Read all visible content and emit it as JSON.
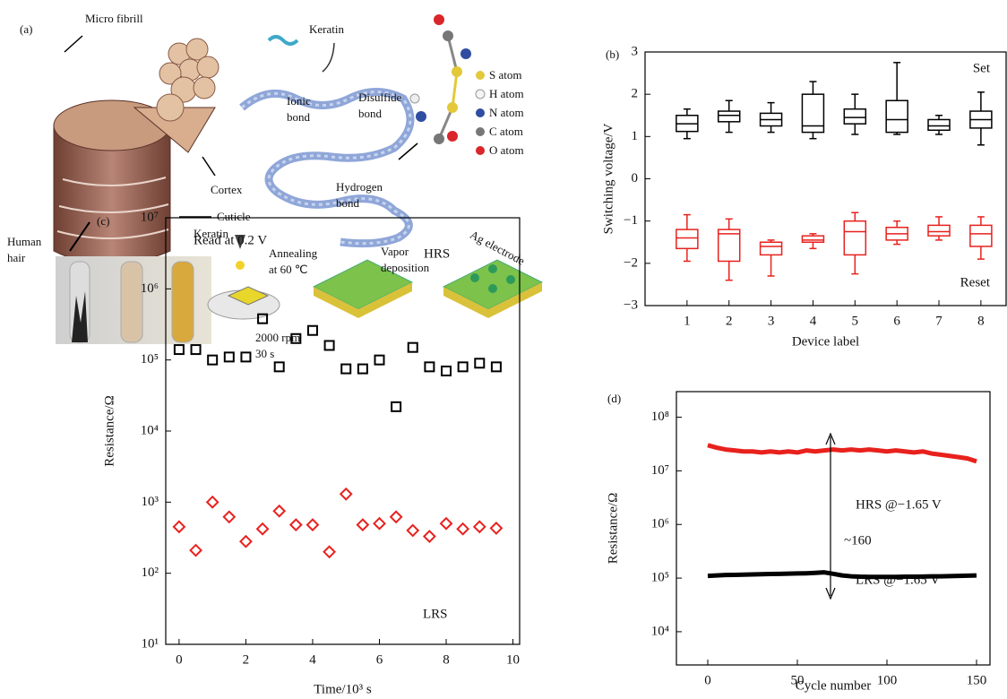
{
  "panel_a": {
    "panel_label": "(a)",
    "labels": [
      {
        "lines": [
          "Micro fibrill"
        ]
      },
      {
        "lines": [
          "Keratin"
        ]
      },
      {
        "lines": [
          "S atom"
        ]
      },
      {
        "lines": [
          "H atom"
        ]
      },
      {
        "lines": [
          "N atom"
        ]
      },
      {
        "lines": [
          "C atom"
        ]
      },
      {
        "lines": [
          "O atom"
        ]
      },
      {
        "lines": [
          "Ionic",
          "bond"
        ]
      },
      {
        "lines": [
          "Disulfide",
          "bond"
        ]
      },
      {
        "lines": [
          "Cortex"
        ]
      },
      {
        "lines": [
          "Cuticle"
        ]
      },
      {
        "lines": [
          "Human",
          "hair"
        ]
      },
      {
        "lines": [
          "Hydrogen",
          "bond"
        ]
      },
      {
        "lines": [
          "Keratin"
        ]
      },
      {
        "lines": [
          "Annealing",
          "at 60 ℃"
        ]
      },
      {
        "lines": [
          "Vapor",
          "deposition"
        ]
      },
      {
        "lines": [
          "Ag electrode"
        ]
      },
      {
        "lines": [
          "2000 rpm",
          "30 s"
        ]
      }
    ]
  },
  "chart_data": [
    {
      "type": "box",
      "panel_label": "(b)",
      "x_label": "Device label",
      "y_label": "Switching voltage/V",
      "categories": [
        "1",
        "2",
        "3",
        "4",
        "5",
        "6",
        "7",
        "8"
      ],
      "ylim": [
        -3,
        3
      ],
      "yticks": [
        {
          "value": -3,
          "label": "−3"
        },
        {
          "value": -2,
          "label": "−2"
        },
        {
          "value": -1,
          "label": "−1"
        },
        0,
        1,
        2,
        3
      ],
      "annotations": [
        "Set",
        "Reset"
      ],
      "series": [
        {
          "name": "Set",
          "color": "#000000",
          "min": [
            0.95,
            1.1,
            1.1,
            0.95,
            1.05,
            1.05,
            1.05,
            0.8
          ],
          "q1": [
            1.12,
            1.35,
            1.25,
            1.1,
            1.3,
            1.1,
            1.15,
            1.2
          ],
          "median": [
            1.3,
            1.5,
            1.4,
            1.25,
            1.45,
            1.4,
            1.25,
            1.4
          ],
          "q3": [
            1.5,
            1.6,
            1.55,
            2.0,
            1.65,
            1.85,
            1.4,
            1.6
          ],
          "max": [
            1.65,
            1.85,
            1.8,
            2.3,
            2.0,
            2.75,
            1.5,
            2.05
          ]
        },
        {
          "name": "Reset",
          "color": "#e8211d",
          "min": [
            -1.95,
            -2.4,
            -2.3,
            -1.65,
            -2.25,
            -1.55,
            -1.45,
            -1.9
          ],
          "q1": [
            -1.65,
            -1.95,
            -1.8,
            -1.5,
            -1.8,
            -1.45,
            -1.35,
            -1.6
          ],
          "median": [
            -1.4,
            -1.3,
            -1.6,
            -1.45,
            -1.25,
            -1.3,
            -1.25,
            -1.3
          ],
          "q3": [
            -1.2,
            -1.2,
            -1.5,
            -1.35,
            -1.0,
            -1.15,
            -1.1,
            -1.1
          ],
          "max": [
            -0.85,
            -0.95,
            -1.45,
            -1.3,
            -0.8,
            -1.0,
            -0.9,
            -0.9
          ]
        }
      ]
    },
    {
      "type": "scatter",
      "panel_label": "(c)",
      "x_label": "Time/10³ s",
      "y_label": "Resistance/Ω",
      "ylog": true,
      "xlim": [
        -0.4,
        10.2
      ],
      "ylim": [
        10,
        10000000
      ],
      "xticks": [
        0,
        2,
        4,
        6,
        8,
        10
      ],
      "yticks": [
        {
          "value": 10,
          "label": "10¹"
        },
        {
          "value": 100,
          "label": "10²"
        },
        {
          "value": 1000,
          "label": "10³"
        },
        {
          "value": 10000,
          "label": "10⁴"
        },
        {
          "value": 100000,
          "label": "10⁵"
        },
        {
          "value": 1000000,
          "label": "10⁶"
        },
        {
          "value": 10000000,
          "label": "10⁷"
        }
      ],
      "annotations": [
        "Read at 0.2 V",
        "HRS",
        "LRS"
      ],
      "x": [
        0,
        0.5,
        1,
        1.5,
        2,
        2.5,
        3,
        3.5,
        4,
        4.5,
        5,
        5.5,
        6,
        6.5,
        7,
        7.5,
        8,
        8.5,
        9,
        9.5
      ],
      "series": [
        {
          "name": "HRS",
          "color": "#000000",
          "marker": "square",
          "values": [
            140000,
            140000,
            100000,
            110000,
            110000,
            380000,
            80000,
            200000,
            260000,
            160000,
            75000,
            75000,
            100000,
            22000,
            150000,
            80000,
            70000,
            80000,
            90000,
            80000
          ]
        },
        {
          "name": "LRS",
          "color": "#e8211d",
          "marker": "diamond",
          "values": [
            450,
            210,
            1000,
            620,
            280,
            420,
            750,
            480,
            480,
            200,
            1300,
            480,
            500,
            620,
            400,
            330,
            500,
            420,
            450,
            430
          ]
        }
      ]
    },
    {
      "type": "line",
      "panel_label": "(d)",
      "x_label": "Cycle number",
      "y_label": "Resistance/Ω",
      "ylog": true,
      "xlim": [
        -17.5,
        157.5
      ],
      "ylim": [
        2400,
        300000000
      ],
      "xticks": [
        0,
        50,
        100,
        150
      ],
      "yticks": [
        {
          "value": 10000,
          "label": "10⁴"
        },
        {
          "value": 100000,
          "label": "10⁵"
        },
        {
          "value": 1000000,
          "label": "10⁶"
        },
        {
          "value": 10000000,
          "label": "10⁷"
        },
        {
          "value": 100000000,
          "label": "10⁸"
        }
      ],
      "annotations": [
        "HRS @−1.65 V",
        "~160",
        "LRS @−1.65 V"
      ],
      "x": [
        0,
        5,
        10,
        15,
        20,
        25,
        30,
        35,
        40,
        45,
        50,
        55,
        60,
        65,
        70,
        75,
        80,
        85,
        90,
        95,
        100,
        105,
        110,
        115,
        120,
        125,
        130,
        135,
        140,
        145,
        150
      ],
      "series": [
        {
          "name": "HRS",
          "color": "#e8211d",
          "values": [
            30000000,
            27000000,
            25000000,
            24000000,
            23000000,
            23000000,
            22000000,
            23000000,
            22000000,
            23000000,
            22000000,
            24000000,
            23000000,
            24000000,
            25000000,
            24000000,
            25000000,
            24000000,
            25000000,
            24000000,
            23000000,
            24000000,
            23000000,
            22000000,
            23000000,
            21000000,
            20000000,
            19000000,
            18000000,
            17000000,
            15000000
          ]
        },
        {
          "name": "LRS",
          "color": "#000000",
          "values": [
            110000,
            112000,
            114000,
            115000,
            116000,
            117000,
            118000,
            119000,
            120000,
            121000,
            122000,
            123000,
            125000,
            128000,
            120000,
            112000,
            108000,
            106000,
            105000,
            105000,
            105000,
            105000,
            106000,
            106000,
            107000,
            108000,
            108000,
            109000,
            110000,
            111000,
            112000
          ]
        }
      ]
    }
  ]
}
